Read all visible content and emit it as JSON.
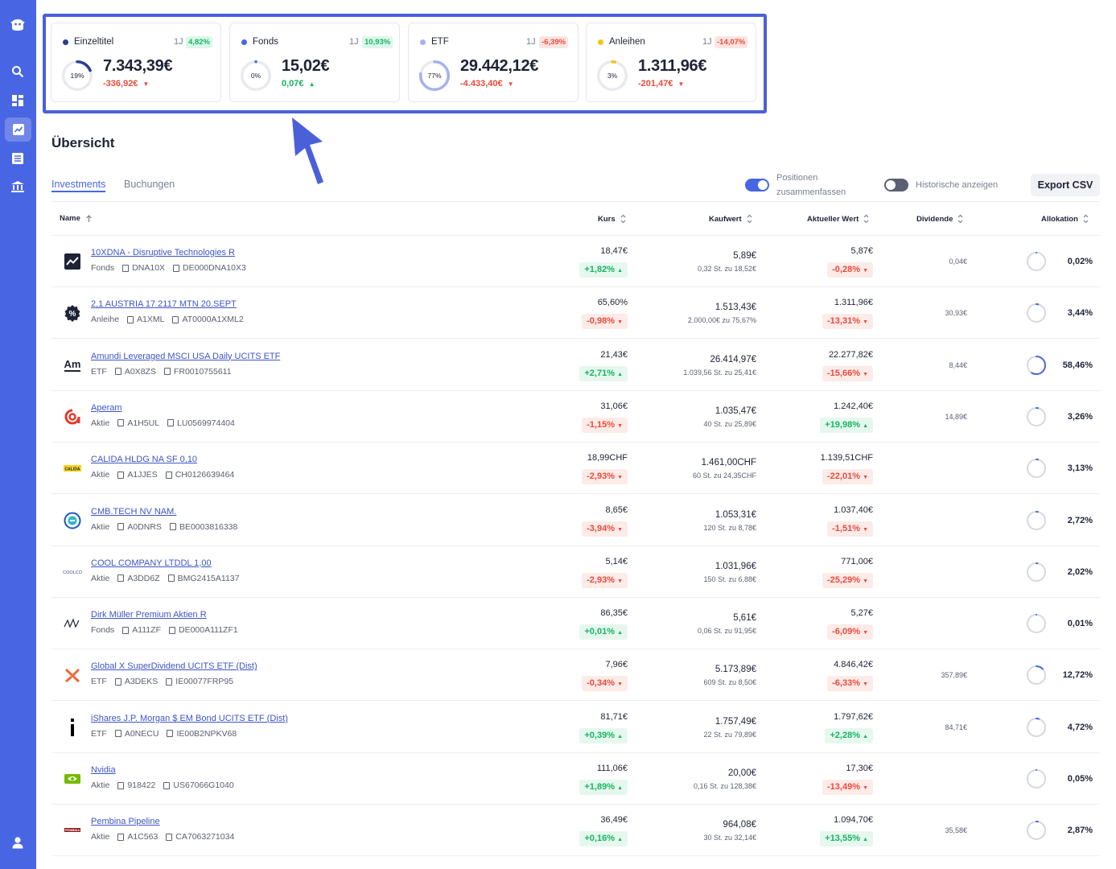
{
  "colors": {
    "accent": "#4866e3",
    "positive": "#16b364",
    "negative": "#ea4a3c",
    "einzeltitel": "#2b3d8f",
    "fonds": "#4866e3",
    "etf": "#a3b3ee",
    "anleihen": "#f5c518"
  },
  "sidebar": {
    "icons": [
      "app-logo-icon",
      "search-icon",
      "dashboard-icon",
      "chart-icon",
      "list-icon",
      "bank-icon",
      "user-icon"
    ]
  },
  "cards": [
    {
      "name": "Einzeltitel",
      "period": "1J",
      "badge": "4,82%",
      "badge_dir": "pos",
      "percent": 19,
      "percent_label": "19%",
      "value": "7.343,39€",
      "delta": "-336,92€",
      "delta_dir": "neg",
      "color": "#2b3d8f"
    },
    {
      "name": "Fonds",
      "period": "1J",
      "badge": "10,93%",
      "badge_dir": "pos",
      "percent": 0,
      "percent_label": "0%",
      "value": "15,02€",
      "delta": "0,07€",
      "delta_dir": "pos",
      "color": "#4866e3"
    },
    {
      "name": "ETF",
      "period": "1J",
      "badge": "-6,39%",
      "badge_dir": "neg",
      "percent": 77,
      "percent_label": "77%",
      "value": "29.442,12€",
      "delta": "-4.433,40€",
      "delta_dir": "neg",
      "color": "#a3b3ee"
    },
    {
      "name": "Anleihen",
      "period": "1J",
      "badge": "-14,07%",
      "badge_dir": "neg",
      "percent": 3,
      "percent_label": "3%",
      "value": "1.311,96€",
      "delta": "-201,47€",
      "delta_dir": "neg",
      "color": "#f5c518"
    }
  ],
  "page_title": "Übersicht",
  "tabs": {
    "investments": "Investments",
    "buchungen": "Buchungen"
  },
  "toggles": {
    "positionen_line1": "Positionen",
    "positionen_line2": "zusammenfassen",
    "positionen_on": true,
    "historische": "Historische anzeigen",
    "historische_on": false
  },
  "export_label": "Export CSV",
  "columns": {
    "name": "Name",
    "kurs": "Kurs",
    "kaufwert": "Kaufwert",
    "aktueller_wert": "Aktueller Wert",
    "dividende": "Dividende",
    "allokation": "Allokation"
  },
  "rows": [
    {
      "logo": "chart-logo-icon",
      "name": "10XDNA - Disruptive Technologies R",
      "type": "Fonds",
      "wkn": "DNA10X",
      "isin": "DE000DNA10X3",
      "kurs": "18,47€",
      "kurs_change": "+1,82%",
      "kurs_dir": "pos",
      "kaufwert": "5,89€",
      "kauf_detail": "0,32 St. zu 18,52€",
      "aktuell": "5,87€",
      "akt_change": "-0,28%",
      "akt_dir": "neg",
      "dividende": "0,04€",
      "allokation": "0,02%",
      "allo_pct": 0.02
    },
    {
      "logo": "percent-logo-icon",
      "name": "2,1 AUSTRIA 17 2117 MTN 20.SEPT",
      "type": "Anleihe",
      "wkn": "A1XML",
      "isin": "AT0000A1XML2",
      "kurs": "65,60%",
      "kurs_change": "-0,98%",
      "kurs_dir": "neg",
      "kaufwert": "1.513,43€",
      "kauf_detail": "2.000,00€ zu 75,67%",
      "aktuell": "1.311,96€",
      "akt_change": "-13,31%",
      "akt_dir": "neg",
      "dividende": "30,93€",
      "allokation": "3,44%",
      "allo_pct": 3.44
    },
    {
      "logo": "amundi-logo-icon",
      "name": "Amundi Leveraged MSCI USA Daily UCITS ETF",
      "type": "ETF",
      "wkn": "A0X8ZS",
      "isin": "FR0010755611",
      "kurs": "21,43€",
      "kurs_change": "+2,71%",
      "kurs_dir": "pos",
      "kaufwert": "26.414,97€",
      "kauf_detail": "1.039,56 St. zu 25,41€",
      "aktuell": "22.277,82€",
      "akt_change": "-15,66%",
      "akt_dir": "neg",
      "dividende": "8,44€",
      "allokation": "58,46%",
      "allo_pct": 58.46
    },
    {
      "logo": "aperam-logo-icon",
      "name": "Aperam",
      "type": "Aktie",
      "wkn": "A1H5UL",
      "isin": "LU0569974404",
      "kurs": "31,06€",
      "kurs_change": "-1,15%",
      "kurs_dir": "neg",
      "kaufwert": "1.035,47€",
      "kauf_detail": "40 St. zu 25,89€",
      "aktuell": "1.242,40€",
      "akt_change": "+19,98%",
      "akt_dir": "pos",
      "dividende": "14,89€",
      "allokation": "3,26%",
      "allo_pct": 3.26
    },
    {
      "logo": "calida-logo-icon",
      "name": "CALIDA HLDG NA SF 0,10",
      "type": "Aktie",
      "wkn": "A1JJES",
      "isin": "CH0126639464",
      "kurs": "18,99CHF",
      "kurs_change": "-2,93%",
      "kurs_dir": "neg",
      "kaufwert": "1.461,00CHF",
      "kauf_detail": "60 St. zu 24,35CHF",
      "aktuell": "1.139,51CHF",
      "akt_change": "-22,01%",
      "akt_dir": "neg",
      "dividende": "",
      "allokation": "3,13%",
      "allo_pct": 3.13
    },
    {
      "logo": "cmb-logo-icon",
      "name": "CMB.TECH NV NAM.",
      "type": "Aktie",
      "wkn": "A0DNRS",
      "isin": "BE0003816338",
      "kurs": "8,65€",
      "kurs_change": "-3,94%",
      "kurs_dir": "neg",
      "kaufwert": "1.053,31€",
      "kauf_detail": "120 St. zu 8,78€",
      "aktuell": "1.037,40€",
      "akt_change": "-1,51%",
      "akt_dir": "neg",
      "dividende": "",
      "allokation": "2,72%",
      "allo_pct": 2.72
    },
    {
      "logo": "cool-logo-icon",
      "name": "COOL COMPANY LTDDL 1,00",
      "type": "Aktie",
      "wkn": "A3DD6Z",
      "isin": "BMG2415A1137",
      "kurs": "5,14€",
      "kurs_change": "-2,93%",
      "kurs_dir": "neg",
      "kaufwert": "1.031,96€",
      "kauf_detail": "150 St. zu 6,88€",
      "aktuell": "771,00€",
      "akt_change": "-25,29%",
      "akt_dir": "neg",
      "dividende": "",
      "allokation": "2,02%",
      "allo_pct": 2.02
    },
    {
      "logo": "dirk-logo-icon",
      "name": "Dirk Müller Premium Aktien R",
      "type": "Fonds",
      "wkn": "A111ZF",
      "isin": "DE000A111ZF1",
      "kurs": "86,35€",
      "kurs_change": "+0,01%",
      "kurs_dir": "pos",
      "kaufwert": "5,61€",
      "kauf_detail": "0,06 St. zu 91,95€",
      "aktuell": "5,27€",
      "akt_change": "-6,09%",
      "akt_dir": "neg",
      "dividende": "",
      "allokation": "0,01%",
      "allo_pct": 0.01
    },
    {
      "logo": "globalx-logo-icon",
      "name": "Global X SuperDividend UCITS ETF (Dist)",
      "type": "ETF",
      "wkn": "A3DEKS",
      "isin": "IE00077FRP95",
      "kurs": "7,96€",
      "kurs_change": "-0,34%",
      "kurs_dir": "neg",
      "kaufwert": "5.173,89€",
      "kauf_detail": "609 St. zu 8,50€",
      "aktuell": "4.846,42€",
      "akt_change": "-6,33%",
      "akt_dir": "neg",
      "dividende": "357,89€",
      "allokation": "12,72%",
      "allo_pct": 12.72
    },
    {
      "logo": "ishares-logo-icon",
      "name": "iShares J.P. Morgan $ EM Bond UCITS ETF (Dist)",
      "type": "ETF",
      "wkn": "A0NECU",
      "isin": "IE00B2NPKV68",
      "kurs": "81,71€",
      "kurs_change": "+0,39%",
      "kurs_dir": "pos",
      "kaufwert": "1.757,49€",
      "kauf_detail": "22 St. zu 79,89€",
      "aktuell": "1.797,62€",
      "akt_change": "+2,28%",
      "akt_dir": "pos",
      "dividende": "84,71€",
      "allokation": "4,72%",
      "allo_pct": 4.72
    },
    {
      "logo": "nvidia-logo-icon",
      "name": "Nvidia",
      "type": "Aktie",
      "wkn": "918422",
      "isin": "US67066G1040",
      "kurs": "111,06€",
      "kurs_change": "+1,89%",
      "kurs_dir": "pos",
      "kaufwert": "20,00€",
      "kauf_detail": "0,16 St. zu 128,38€",
      "aktuell": "17,30€",
      "akt_change": "-13,49%",
      "akt_dir": "neg",
      "dividende": "",
      "allokation": "0,05%",
      "allo_pct": 0.05
    },
    {
      "logo": "pembina-logo-icon",
      "name": "Pembina Pipeline",
      "type": "Aktie",
      "wkn": "A1C563",
      "isin": "CA7063271034",
      "kurs": "36,49€",
      "kurs_change": "+0,16%",
      "kurs_dir": "pos",
      "kaufwert": "964,08€",
      "kauf_detail": "30 St. zu 32,14€",
      "aktuell": "1.094,70€",
      "akt_change": "+13,55%",
      "akt_dir": "pos",
      "dividende": "35,58€",
      "allokation": "2,87%",
      "allo_pct": 2.87
    }
  ]
}
